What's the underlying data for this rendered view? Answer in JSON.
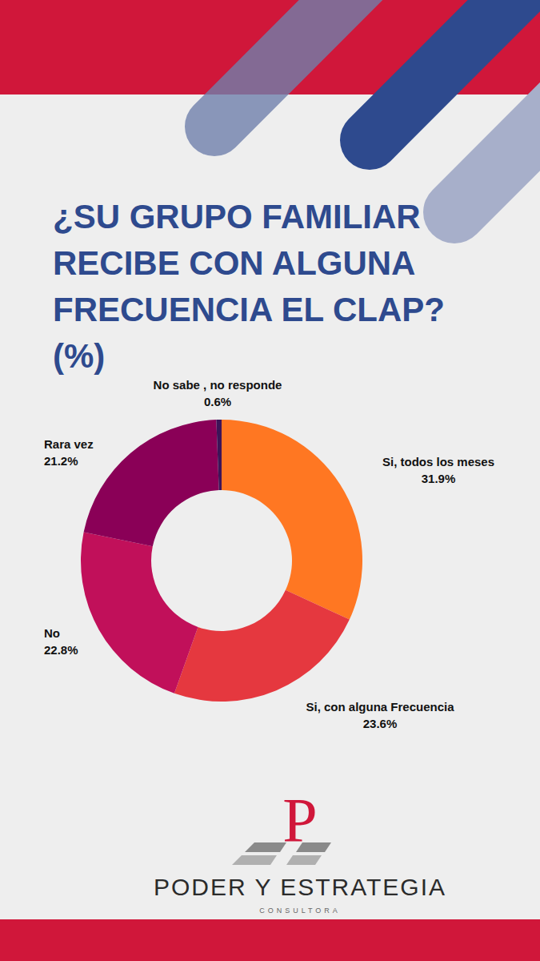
{
  "chart_data": {
    "type": "pie",
    "title": "¿SU GRUPO FAMILIAR RECIBE CON ALGUNA FRECUENCIA EL CLAP? (%)",
    "categories": [
      "Si, todos los meses",
      "Si, con alguna Frecuencia",
      "No",
      "Rara vez",
      "No sabe , no responde"
    ],
    "values": [
      31.9,
      23.6,
      22.8,
      21.2,
      0.6
    ],
    "value_labels": [
      "31.9%",
      "23.6%",
      "22.8%",
      "21.2%",
      "0.6%"
    ],
    "colors": [
      "#ff7722",
      "#e5383f",
      "#c1105a",
      "#8a0057",
      "#3d1458"
    ],
    "data_labels": true
  },
  "logo": {
    "letter": "P",
    "name": "PODER Y ESTRATEGIA",
    "subtitle": "CONSULTORA"
  }
}
